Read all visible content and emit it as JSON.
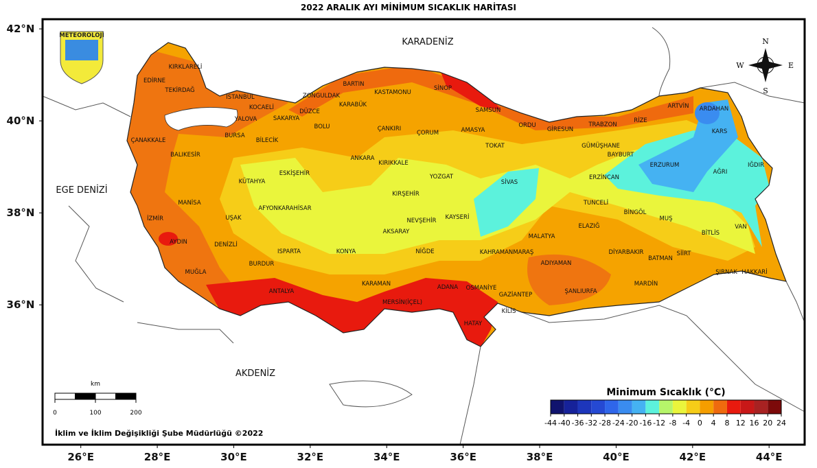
{
  "title": "2022 ARALIK AYI MİNİMUM SICAKLIK HARİTASI",
  "map": {
    "xlim": [
      25,
      44.93
    ],
    "ylim": [
      32.96,
      42.21
    ],
    "lon_ticks": [
      {
        "value": 26,
        "label": "26°E"
      },
      {
        "value": 28,
        "label": "28°E"
      },
      {
        "value": 30,
        "label": "30°E"
      },
      {
        "value": 32,
        "label": "32°E"
      },
      {
        "value": 34,
        "label": "34°E"
      },
      {
        "value": 36,
        "label": "36°E"
      },
      {
        "value": 38,
        "label": "38°E"
      },
      {
        "value": 40,
        "label": "40°E"
      },
      {
        "value": 42,
        "label": "42°E"
      },
      {
        "value": 44,
        "label": "44°E"
      }
    ],
    "lat_ticks": [
      {
        "value": 42,
        "label": "42°N"
      },
      {
        "value": 40,
        "label": "40°N"
      },
      {
        "value": 38,
        "label": "38°N"
      },
      {
        "value": 36,
        "label": "36°N"
      }
    ]
  },
  "logo": "METEOROLOJİ",
  "compass": {
    "n": "N",
    "w": "W",
    "e": "E",
    "s": "S"
  },
  "seas": [
    "KARADENİZ",
    "EGE DENİZİ",
    "AKDENİZ"
  ],
  "provinces": [
    "KIRKLARELİ",
    "EDİRNE",
    "TEKİRDAĞ",
    "İSTANBUL",
    "KOCAELİ",
    "ZONGULDAK",
    "BARTIN",
    "KASTAMONU",
    "SİNOP",
    "SAMSUN",
    "ARTVİN",
    "ARDAHAN",
    "YALOVA",
    "SAKARYA",
    "DÜZCE",
    "KARABÜK",
    "BOLU",
    "ÇANKIRI",
    "ÇORUM",
    "AMASYA",
    "ORDU",
    "GİRESUN",
    "TRABZON",
    "RİZE",
    "KARS",
    "ÇANAKKALE",
    "BURSA",
    "BİLECİK",
    "TOKAT",
    "GÜMÜŞHANE",
    "BAYBURT",
    "BALIKESİR",
    "ANKARA",
    "KIRIKKALE",
    "ERZURUM",
    "AĞRI",
    "IĞDIR",
    "ESKİŞEHİR",
    "YOZGAT",
    "SİVAS",
    "ERZİNCAN",
    "KÜTAHYA",
    "KIRŞEHİR",
    "TUNCELİ",
    "MANİSA",
    "AFYONKARAHİSAR",
    "BİNGÖL",
    "İZMİR",
    "UŞAK",
    "NEVŞEHİR",
    "KAYSERİ",
    "MUŞ",
    "VAN",
    "ELAZIĞ",
    "AKSARAY",
    "BİTLİS",
    "MALATYA",
    "AYDIN",
    "DENİZLİ",
    "ISPARTA",
    "KONYA",
    "NİĞDE",
    "KAHRAMANMARAŞ",
    "DİYARBAKIR",
    "SİİRT",
    "BATMAN",
    "ADIYAMAN",
    "BURDUR",
    "ŞIRNAK",
    "HAKKARİ",
    "MUĞLA",
    "KARAMAN",
    "MARDİN",
    "ADANA",
    "OSMANİYE",
    "ANTALYA",
    "ŞANLIURFA",
    "GAZİANTEP",
    "MERSİN(İÇEL)",
    "KİLİS",
    "HATAY"
  ],
  "scale_bar": {
    "unit": "km",
    "ticks": [
      0,
      100,
      200
    ]
  },
  "credit": "İklim ve İklim Değişikliği Şube Müdürlüğü ©2022",
  "legend": {
    "title": "Minimum Sıcaklık (°C)",
    "ticks": [
      -44,
      -40,
      -36,
      -32,
      -28,
      -24,
      -20,
      -16,
      -12,
      -8,
      -4,
      0,
      4,
      8,
      12,
      16,
      20,
      24
    ],
    "colors": [
      "#0b0b45",
      "#10136e",
      "#16229a",
      "#1d36bb",
      "#2549d3",
      "#2f66ea",
      "#3a8cf0",
      "#45b2f2",
      "#5cf2dc",
      "#b6f56a",
      "#eaf53c",
      "#f6cd18",
      "#f59e00",
      "#ef6a0e",
      "#e81a0e",
      "#c81818",
      "#a82222",
      "#7c0a0a"
    ]
  }
}
